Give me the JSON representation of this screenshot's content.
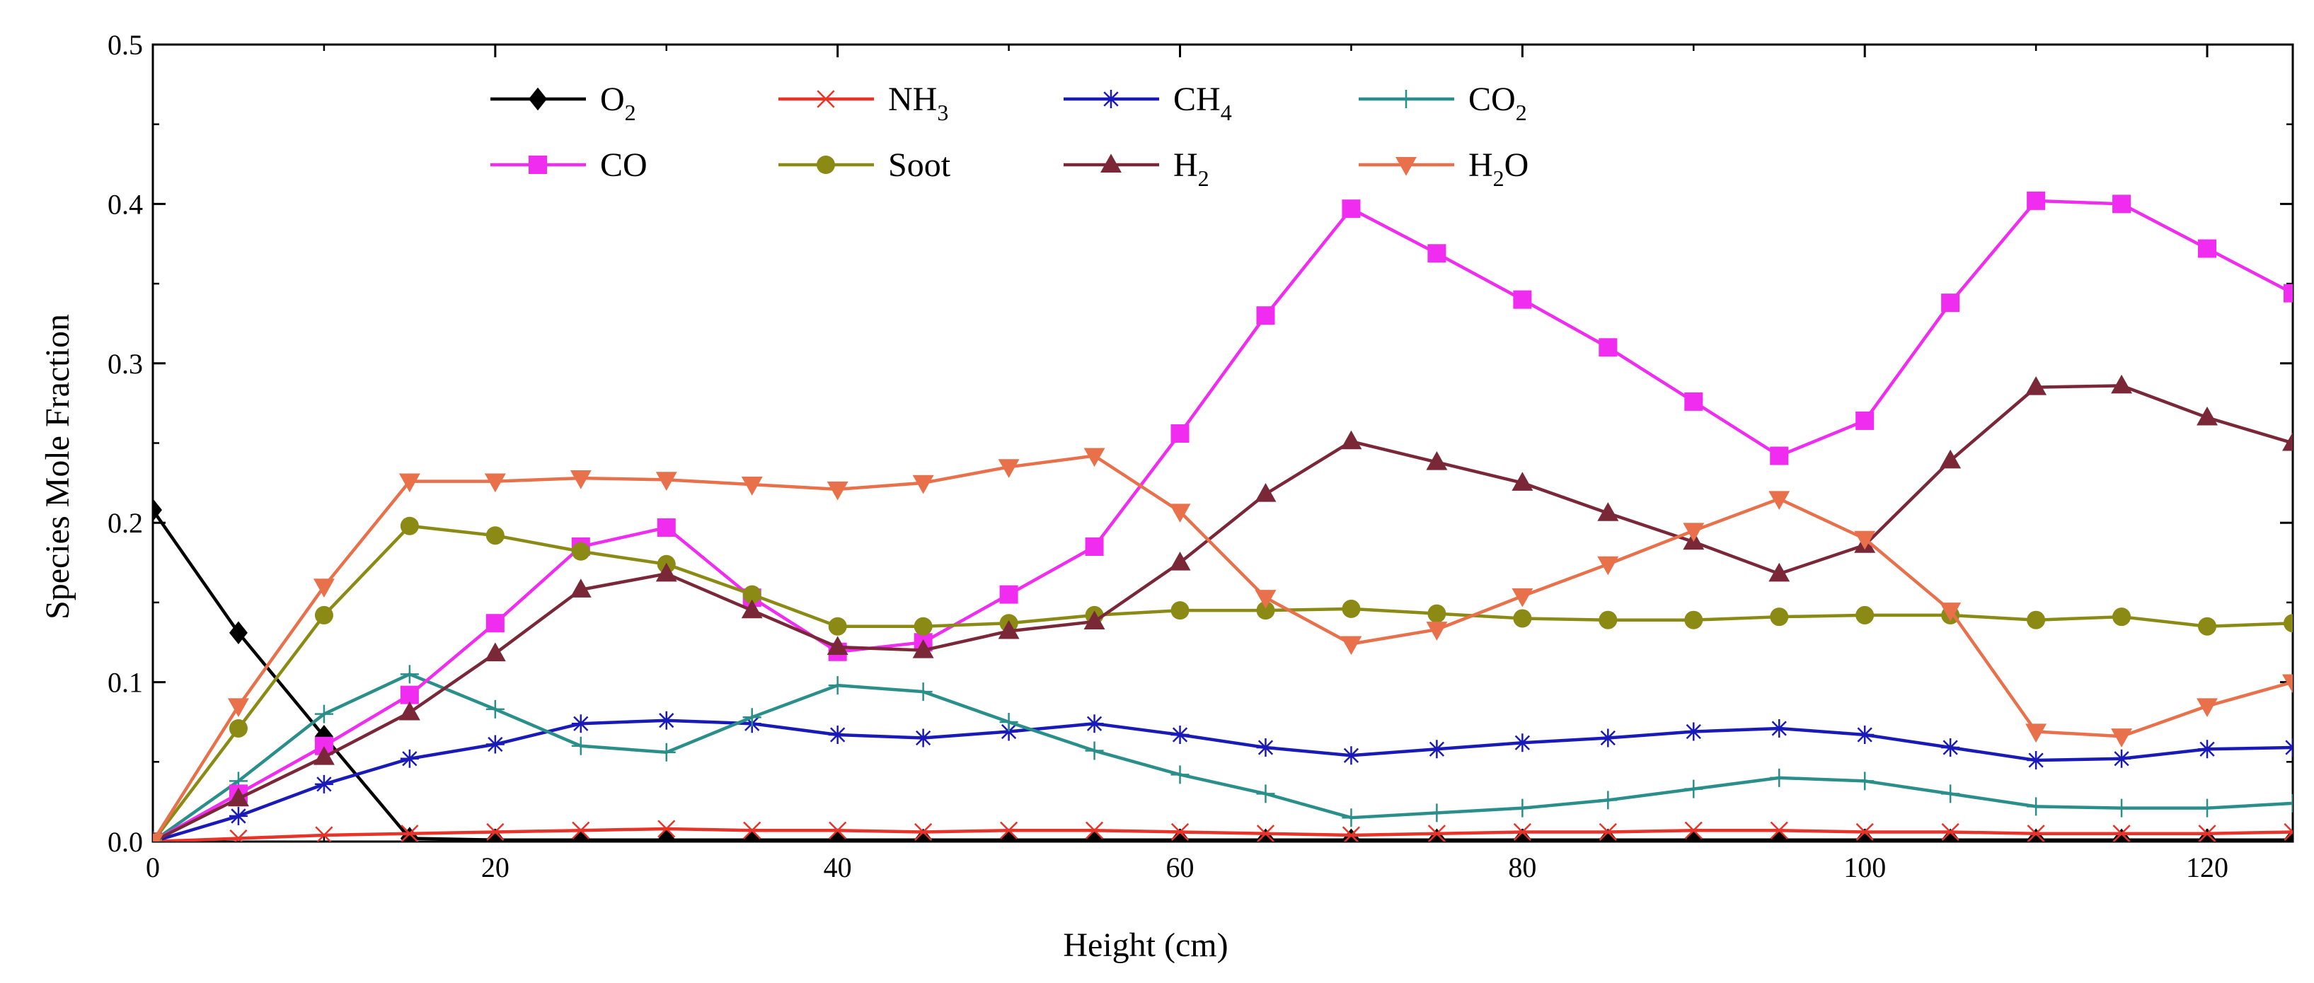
{
  "chart_data": {
    "type": "line",
    "title": "",
    "xlabel": "Height (cm)",
    "ylabel": "Species Mole Fraction",
    "xlim": [
      0,
      125
    ],
    "ylim": [
      0,
      0.5
    ],
    "xticks": [
      0,
      20,
      40,
      60,
      80,
      100,
      120
    ],
    "xtick_labels": [
      "0",
      "20",
      "40",
      "60",
      "80",
      "100",
      "120"
    ],
    "yticks": [
      0.0,
      0.1,
      0.2,
      0.3,
      0.4,
      0.5
    ],
    "ytick_labels": [
      "0.0",
      "0.1",
      "0.2",
      "0.3",
      "0.4",
      "0.5"
    ],
    "grid": false,
    "legend_position": "top-left",
    "series": [
      {
        "name": "O2",
        "label_main": "O",
        "label_sub": "2",
        "label_tail": "",
        "color": "#000000",
        "marker": "diamond",
        "x": [
          0,
          5,
          10,
          15,
          20,
          25,
          30,
          35,
          40,
          45,
          50,
          55,
          60,
          65,
          70,
          75,
          80,
          85,
          90,
          95,
          100,
          105,
          110,
          115,
          120,
          125
        ],
        "y": [
          0.208,
          0.131,
          0.066,
          0.002,
          0.001,
          0.001,
          0.001,
          0.001,
          0.001,
          0.001,
          0.001,
          0.001,
          0.001,
          0.001,
          0.001,
          0.001,
          0.001,
          0.001,
          0.001,
          0.001,
          0.001,
          0.001,
          0.001,
          0.001,
          0.001,
          0.001
        ]
      },
      {
        "name": "NH3",
        "label_main": "NH",
        "label_sub": "3",
        "label_tail": "",
        "color": "#e8332a",
        "marker": "x",
        "x": [
          0,
          5,
          10,
          15,
          20,
          25,
          30,
          35,
          40,
          45,
          50,
          55,
          60,
          65,
          70,
          75,
          80,
          85,
          90,
          95,
          100,
          105,
          110,
          115,
          120,
          125
        ],
        "y": [
          0.0,
          0.002,
          0.004,
          0.005,
          0.006,
          0.007,
          0.008,
          0.007,
          0.007,
          0.006,
          0.007,
          0.007,
          0.006,
          0.005,
          0.004,
          0.005,
          0.006,
          0.006,
          0.007,
          0.007,
          0.006,
          0.006,
          0.005,
          0.005,
          0.005,
          0.006
        ]
      },
      {
        "name": "CH4",
        "label_main": "CH",
        "label_sub": "4",
        "label_tail": "",
        "color": "#1a1ab8",
        "marker": "asterisk",
        "x": [
          0,
          5,
          10,
          15,
          20,
          25,
          30,
          35,
          40,
          45,
          50,
          55,
          60,
          65,
          70,
          75,
          80,
          85,
          90,
          95,
          100,
          105,
          110,
          115,
          120,
          125
        ],
        "y": [
          0.0,
          0.016,
          0.036,
          0.052,
          0.061,
          0.074,
          0.076,
          0.074,
          0.067,
          0.065,
          0.069,
          0.074,
          0.067,
          0.059,
          0.054,
          0.058,
          0.062,
          0.065,
          0.069,
          0.071,
          0.067,
          0.059,
          0.051,
          0.052,
          0.058,
          0.059
        ]
      },
      {
        "name": "CO2",
        "label_main": "CO",
        "label_sub": "2",
        "label_tail": "",
        "color": "#2a8f8a",
        "marker": "plus",
        "x": [
          0,
          5,
          10,
          15,
          20,
          25,
          30,
          35,
          40,
          45,
          50,
          55,
          60,
          65,
          70,
          75,
          80,
          85,
          90,
          95,
          100,
          105,
          110,
          115,
          120,
          125
        ],
        "y": [
          0.0,
          0.038,
          0.08,
          0.105,
          0.083,
          0.06,
          0.056,
          0.078,
          0.098,
          0.094,
          0.075,
          0.057,
          0.042,
          0.03,
          0.015,
          0.018,
          0.021,
          0.026,
          0.033,
          0.04,
          0.038,
          0.03,
          0.022,
          0.021,
          0.021,
          0.024
        ]
      },
      {
        "name": "CO",
        "label_main": "CO",
        "label_sub": "",
        "label_tail": "",
        "color": "#f02cf0",
        "marker": "square",
        "x": [
          0,
          5,
          10,
          15,
          20,
          25,
          30,
          35,
          40,
          45,
          50,
          55,
          60,
          65,
          70,
          75,
          80,
          85,
          90,
          95,
          100,
          105,
          110,
          115,
          120,
          125
        ],
        "y": [
          0.0,
          0.03,
          0.06,
          0.092,
          0.137,
          0.185,
          0.197,
          0.153,
          0.119,
          0.125,
          0.155,
          0.185,
          0.256,
          0.33,
          0.397,
          0.369,
          0.34,
          0.31,
          0.276,
          0.242,
          0.264,
          0.338,
          0.402,
          0.4,
          0.372,
          0.344
        ]
      },
      {
        "name": "Soot",
        "label_main": "Soot",
        "label_sub": "",
        "label_tail": "",
        "color": "#8a8a14",
        "marker": "circle",
        "x": [
          0,
          5,
          10,
          15,
          20,
          25,
          30,
          35,
          40,
          45,
          50,
          55,
          60,
          65,
          70,
          75,
          80,
          85,
          90,
          95,
          100,
          105,
          110,
          115,
          120,
          125
        ],
        "y": [
          0.0,
          0.071,
          0.142,
          0.198,
          0.192,
          0.182,
          0.174,
          0.155,
          0.135,
          0.135,
          0.137,
          0.142,
          0.145,
          0.145,
          0.146,
          0.143,
          0.14,
          0.139,
          0.139,
          0.141,
          0.142,
          0.142,
          0.139,
          0.141,
          0.135,
          0.137
        ]
      },
      {
        "name": "H2",
        "label_main": "H",
        "label_sub": "2",
        "label_tail": "",
        "color": "#7a2838",
        "marker": "triangle-up",
        "x": [
          0,
          5,
          10,
          15,
          20,
          25,
          30,
          35,
          40,
          45,
          50,
          55,
          60,
          65,
          70,
          75,
          80,
          85,
          90,
          95,
          100,
          105,
          110,
          115,
          120,
          125
        ],
        "y": [
          0.0,
          0.027,
          0.053,
          0.081,
          0.118,
          0.158,
          0.168,
          0.145,
          0.122,
          0.12,
          0.132,
          0.138,
          0.175,
          0.218,
          0.251,
          0.238,
          0.225,
          0.206,
          0.188,
          0.168,
          0.186,
          0.239,
          0.285,
          0.286,
          0.266,
          0.25
        ]
      },
      {
        "name": "H2O",
        "label_main": "H",
        "label_sub": "2",
        "label_tail": "O",
        "color": "#e8704a",
        "marker": "triangle-down",
        "x": [
          0,
          5,
          10,
          15,
          20,
          25,
          30,
          35,
          40,
          45,
          50,
          55,
          60,
          65,
          70,
          75,
          80,
          85,
          90,
          95,
          100,
          105,
          110,
          115,
          120,
          125
        ],
        "y": [
          0.0,
          0.085,
          0.16,
          0.226,
          0.226,
          0.228,
          0.227,
          0.224,
          0.221,
          0.225,
          0.235,
          0.242,
          0.207,
          0.153,
          0.124,
          0.133,
          0.154,
          0.174,
          0.195,
          0.215,
          0.19,
          0.145,
          0.069,
          0.066,
          0.085,
          0.1
        ]
      }
    ]
  }
}
